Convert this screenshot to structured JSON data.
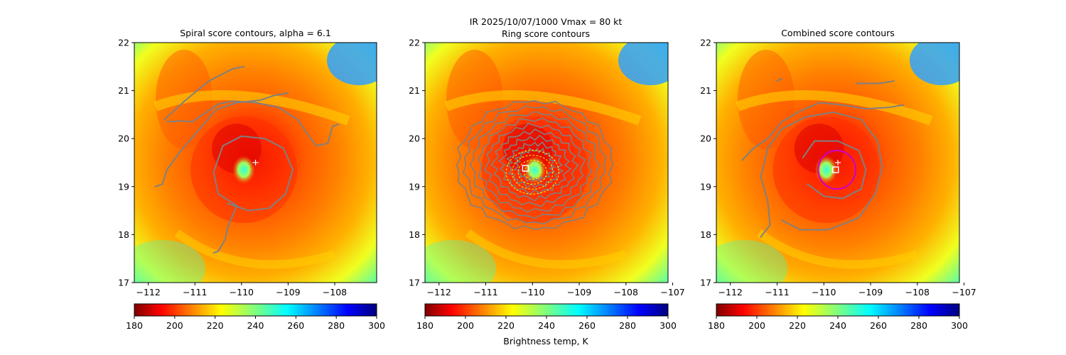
{
  "suptitle": {
    "line1": "IR  2025/10/07/1000    Vmax = 80 kt",
    "line2": "Ring score contours"
  },
  "colorbar": {
    "ticks": [
      "180",
      "200",
      "220",
      "240",
      "260",
      "280",
      "300"
    ],
    "label": "Brightness temp, K",
    "stops": [
      "#7f0000",
      "#ff0000",
      "#ffff00",
      "#00ffff",
      "#0000ff",
      "#00007f"
    ]
  },
  "colors": {
    "contour": "#808080",
    "ring_contour_yellow": "#ffff00",
    "circle": "#cc00cc",
    "marker": "#ffffff"
  },
  "chart_data": [
    {
      "type": "heatmap",
      "title": "Spiral score contours, alpha =  6.1",
      "xlim": [
        -112.3,
        -107.1
      ],
      "ylim": [
        17,
        22
      ],
      "xticks": [
        "-112",
        "-111",
        "-110",
        "-109",
        "-108"
      ],
      "yticks": [
        "17",
        "18",
        "19",
        "20",
        "21",
        "22"
      ],
      "value_units": "K",
      "value_range": [
        180,
        300
      ],
      "storm_center": [
        -109.95,
        19.35
      ],
      "cross_marker": [
        -109.7,
        19.5
      ],
      "overlay": "spiral contours"
    },
    {
      "type": "heatmap",
      "title": "Ring score contours",
      "xlim": [
        -112.3,
        -107.1
      ],
      "ylim": [
        17,
        22
      ],
      "xticks": [
        "-112",
        "-111",
        "-110",
        "-109",
        "-108",
        "-107"
      ],
      "yticks": [
        "17",
        "18",
        "19",
        "20",
        "21",
        "22"
      ],
      "value_units": "K",
      "value_range": [
        180,
        300
      ],
      "storm_center": [
        -109.95,
        19.35
      ],
      "square_marker": [
        -110.15,
        19.38
      ],
      "overlay": "ring score contours"
    },
    {
      "type": "heatmap",
      "title": "Combined score contours",
      "xlim": [
        -112.3,
        -107.1
      ],
      "ylim": [
        17,
        22
      ],
      "xticks": [
        "-112",
        "-111",
        "-110",
        "-109",
        "-108",
        "-107"
      ],
      "yticks": [
        "17",
        "18",
        "19",
        "20",
        "21",
        "22"
      ],
      "value_units": "K",
      "value_range": [
        180,
        300
      ],
      "storm_center": [
        -109.95,
        19.35
      ],
      "cross_marker": [
        -109.7,
        19.5
      ],
      "square_marker": [
        -109.75,
        19.35
      ],
      "circle_center": [
        -109.72,
        19.35
      ],
      "circle_radius_deg": 0.4,
      "overlay": "combined contours"
    }
  ]
}
